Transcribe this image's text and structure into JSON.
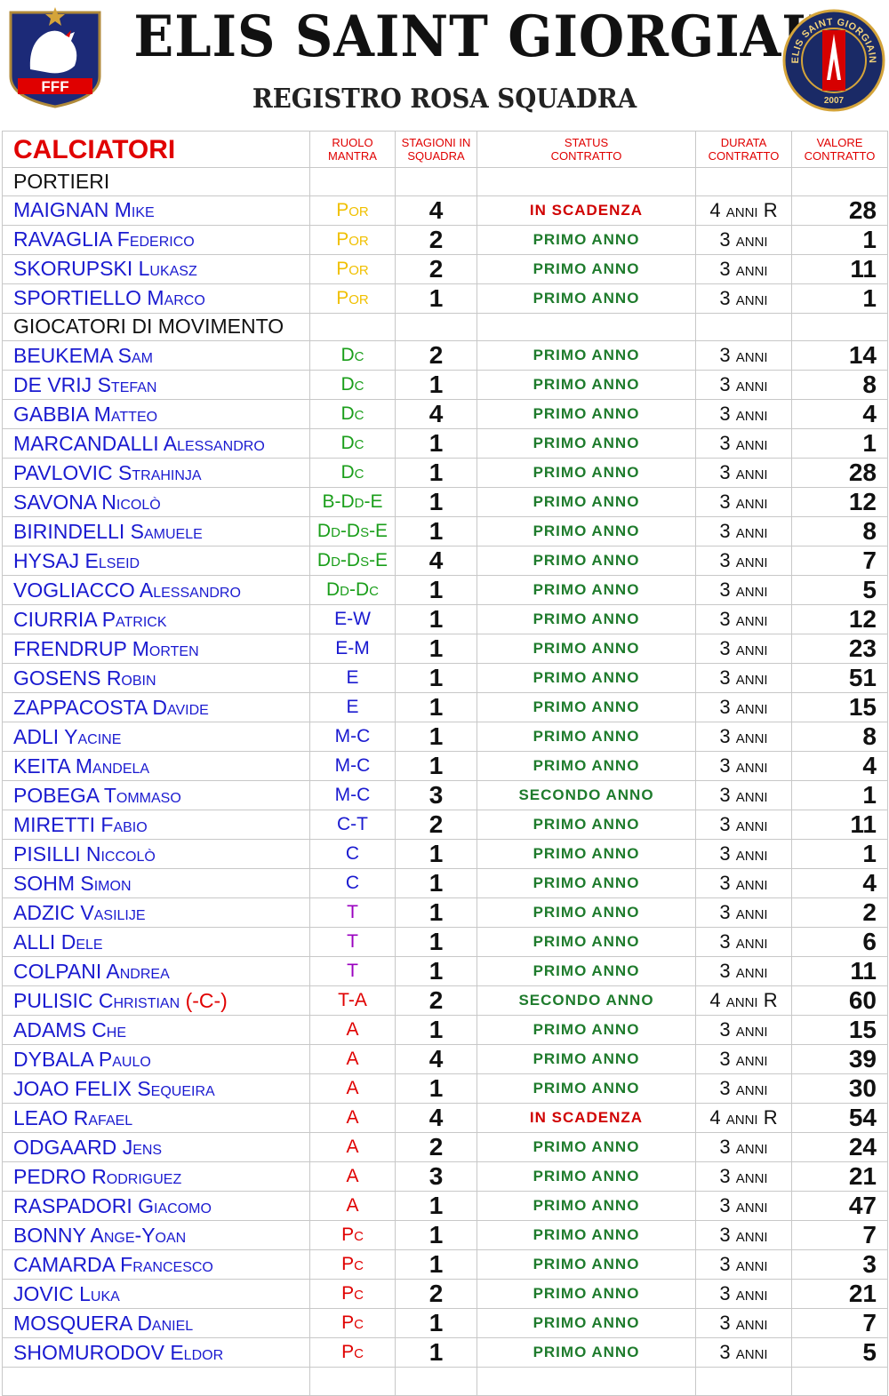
{
  "header": {
    "title": "ELIS SAINT GIORGIAIN",
    "subtitle": "REGISTRO ROSA SQUADRA",
    "left_logo": {
      "text": "FFF",
      "icon": "fff-rooster-crest-icon"
    },
    "right_logo": {
      "ring_text": "ELIS SAINT GIORGIAIN",
      "year": "2007",
      "icon": "psg-style-crest-icon"
    }
  },
  "columns": {
    "players": "CALCIATORI",
    "role": "RUOLO MANTRA",
    "seasons": "STAGIONI IN SQUADRA",
    "status": "STATUS CONTRATTO",
    "duration": "DURATA CONTRATTO",
    "value": "VALORE CONTRATTO"
  },
  "colors": {
    "header_red": "#e00000",
    "name_blue": "#1a1ad0",
    "status_green": "#1e7b2c",
    "status_red": "#d00000",
    "role_por": "#f0c000",
    "role_def": "#1a9e1a",
    "role_e": "#1a1ad0",
    "role_c": "#1a1ad0",
    "role_t": "#9a00c0",
    "role_a": "#e00000"
  },
  "sections": [
    {
      "label": "PORTIERI",
      "players": [
        {
          "surname": "MAIGNAN",
          "first": "Mike",
          "role": "Por",
          "role_color": "#f0c000",
          "seasons": "4",
          "status": "IN SCADENZA",
          "status_color": "#d00000",
          "duration": "4 anni R",
          "value": "28"
        },
        {
          "surname": "RAVAGLIA",
          "first": "Federico",
          "role": "Por",
          "role_color": "#f0c000",
          "seasons": "2",
          "status": "PRIMO ANNO",
          "status_color": "#1e7b2c",
          "duration": "3 anni",
          "value": "1"
        },
        {
          "surname": "SKORUPSKI",
          "first": "Lukasz",
          "role": "Por",
          "role_color": "#f0c000",
          "seasons": "2",
          "status": "PRIMO ANNO",
          "status_color": "#1e7b2c",
          "duration": "3 anni",
          "value": "11"
        },
        {
          "surname": "SPORTIELLO",
          "first": "Marco",
          "role": "Por",
          "role_color": "#f0c000",
          "seasons": "1",
          "status": "PRIMO ANNO",
          "status_color": "#1e7b2c",
          "duration": "3 anni",
          "value": "1"
        }
      ]
    },
    {
      "label": "GIOCATORI DI MOVIMENTO",
      "players": [
        {
          "surname": "BEUKEMA",
          "first": "Sam",
          "role": "Dc",
          "role_color": "#1a9e1a",
          "seasons": "2",
          "status": "PRIMO ANNO",
          "status_color": "#1e7b2c",
          "duration": "3 anni",
          "value": "14"
        },
        {
          "surname": "DE VRIJ",
          "first": "Stefan",
          "role": "Dc",
          "role_color": "#1a9e1a",
          "seasons": "1",
          "status": "PRIMO ANNO",
          "status_color": "#1e7b2c",
          "duration": "3 anni",
          "value": "8"
        },
        {
          "surname": "GABBIA",
          "first": "Matteo",
          "role": "Dc",
          "role_color": "#1a9e1a",
          "seasons": "4",
          "status": "PRIMO ANNO",
          "status_color": "#1e7b2c",
          "duration": "3 anni",
          "value": "4"
        },
        {
          "surname": "MARCANDALLI",
          "first": "Alessandro",
          "role": "Dc",
          "role_color": "#1a9e1a",
          "seasons": "1",
          "status": "PRIMO ANNO",
          "status_color": "#1e7b2c",
          "duration": "3 anni",
          "value": "1"
        },
        {
          "surname": "PAVLOVIC",
          "first": "Strahinja",
          "role": "Dc",
          "role_color": "#1a9e1a",
          "seasons": "1",
          "status": "PRIMO ANNO",
          "status_color": "#1e7b2c",
          "duration": "3 anni",
          "value": "28"
        },
        {
          "surname": "SAVONA",
          "first": "Nicolò",
          "role": "B-Dd-E",
          "role_color": "#1a9e1a",
          "seasons": "1",
          "status": "PRIMO ANNO",
          "status_color": "#1e7b2c",
          "duration": "3 anni",
          "value": "12"
        },
        {
          "surname": "BIRINDELLI",
          "first": "Samuele",
          "role": "Dd-Ds-E",
          "role_color": "#1a9e1a",
          "seasons": "1",
          "status": "PRIMO ANNO",
          "status_color": "#1e7b2c",
          "duration": "3 anni",
          "value": "8"
        },
        {
          "surname": "HYSAJ",
          "first": "Elseid",
          "role": "Dd-Ds-E",
          "role_color": "#1a9e1a",
          "seasons": "4",
          "status": "PRIMO ANNO",
          "status_color": "#1e7b2c",
          "duration": "3 anni",
          "value": "7"
        },
        {
          "surname": "VOGLIACCO",
          "first": "Alessandro",
          "role": "Dd-Dc",
          "role_color": "#1a9e1a",
          "seasons": "1",
          "status": "PRIMO ANNO",
          "status_color": "#1e7b2c",
          "duration": "3 anni",
          "value": "5"
        },
        {
          "surname": "CIURRIA",
          "first": "Patrick",
          "role": "E-W",
          "role_color": "#1a1ad0",
          "seasons": "1",
          "status": "PRIMO ANNO",
          "status_color": "#1e7b2c",
          "duration": "3 anni",
          "value": "12"
        },
        {
          "surname": "FRENDRUP",
          "first": "Morten",
          "role": "E-M",
          "role_color": "#1a1ad0",
          "seasons": "1",
          "status": "PRIMO ANNO",
          "status_color": "#1e7b2c",
          "duration": "3 anni",
          "value": "23"
        },
        {
          "surname": "GOSENS",
          "first": "Robin",
          "role": "E",
          "role_color": "#1a1ad0",
          "seasons": "1",
          "status": "PRIMO ANNO",
          "status_color": "#1e7b2c",
          "duration": "3 anni",
          "value": "51"
        },
        {
          "surname": "ZAPPACOSTA",
          "first": "Davide",
          "role": "E",
          "role_color": "#1a1ad0",
          "seasons": "1",
          "status": "PRIMO ANNO",
          "status_color": "#1e7b2c",
          "duration": "3 anni",
          "value": "15"
        },
        {
          "surname": "ADLI",
          "first": "Yacine",
          "role": "M-C",
          "role_color": "#1a1ad0",
          "seasons": "1",
          "status": "PRIMO ANNO",
          "status_color": "#1e7b2c",
          "duration": "3 anni",
          "value": "8"
        },
        {
          "surname": "KEITA",
          "first": "Mandela",
          "role": "M-C",
          "role_color": "#1a1ad0",
          "seasons": "1",
          "status": "PRIMO ANNO",
          "status_color": "#1e7b2c",
          "duration": "3 anni",
          "value": "4"
        },
        {
          "surname": "POBEGA",
          "first": "Tommaso",
          "role": "M-C",
          "role_color": "#1a1ad0",
          "seasons": "3",
          "status": "SECONDO ANNO",
          "status_color": "#1e7b2c",
          "duration": "3 anni",
          "value": "1"
        },
        {
          "surname": "MIRETTI",
          "first": "Fabio",
          "role": "C-T",
          "role_color": "#1a1ad0",
          "seasons": "2",
          "status": "PRIMO ANNO",
          "status_color": "#1e7b2c",
          "duration": "3 anni",
          "value": "11"
        },
        {
          "surname": "PISILLI",
          "first": "Niccolò",
          "role": "C",
          "role_color": "#1a1ad0",
          "seasons": "1",
          "status": "PRIMO ANNO",
          "status_color": "#1e7b2c",
          "duration": "3 anni",
          "value": "1"
        },
        {
          "surname": "SOHM",
          "first": "Simon",
          "role": "C",
          "role_color": "#1a1ad0",
          "seasons": "1",
          "status": "PRIMO ANNO",
          "status_color": "#1e7b2c",
          "duration": "3 anni",
          "value": "4"
        },
        {
          "surname": "ADZIC",
          "first": "Vasilije",
          "role": "T",
          "role_color": "#9a00c0",
          "seasons": "1",
          "status": "PRIMO ANNO",
          "status_color": "#1e7b2c",
          "duration": "3 anni",
          "value": "2"
        },
        {
          "surname": "ALLI",
          "first": "Dele",
          "role": "T",
          "role_color": "#9a00c0",
          "seasons": "1",
          "status": "PRIMO ANNO",
          "status_color": "#1e7b2c",
          "duration": "3 anni",
          "value": "6"
        },
        {
          "surname": "COLPANI",
          "first": "Andrea",
          "role": "T",
          "role_color": "#9a00c0",
          "seasons": "1",
          "status": "PRIMO ANNO",
          "status_color": "#1e7b2c",
          "duration": "3 anni",
          "value": "11"
        },
        {
          "surname": "PULISIC",
          "first": "Christian",
          "captain": "(-C-)",
          "role": "T-A",
          "role_color": "#e00000",
          "seasons": "2",
          "status": "SECONDO ANNO",
          "status_color": "#1e7b2c",
          "duration": "4 anni R",
          "value": "60"
        },
        {
          "surname": "ADAMS",
          "first": "Che",
          "role": "A",
          "role_color": "#e00000",
          "seasons": "1",
          "status": "PRIMO ANNO",
          "status_color": "#1e7b2c",
          "duration": "3 anni",
          "value": "15"
        },
        {
          "surname": "DYBALA",
          "first": "Paulo",
          "role": "A",
          "role_color": "#e00000",
          "seasons": "4",
          "status": "PRIMO ANNO",
          "status_color": "#1e7b2c",
          "duration": "3 anni",
          "value": "39"
        },
        {
          "surname": "JOAO FELIX",
          "first": "Sequeira",
          "role": "A",
          "role_color": "#e00000",
          "seasons": "1",
          "status": "PRIMO ANNO",
          "status_color": "#1e7b2c",
          "duration": "3 anni",
          "value": "30"
        },
        {
          "surname": "LEAO",
          "first": "Rafael",
          "role": "A",
          "role_color": "#e00000",
          "seasons": "4",
          "status": "IN SCADENZA",
          "status_color": "#d00000",
          "duration": "4 anni R",
          "value": "54"
        },
        {
          "surname": "ODGAARD",
          "first": "Jens",
          "role": "A",
          "role_color": "#e00000",
          "seasons": "2",
          "status": "PRIMO ANNO",
          "status_color": "#1e7b2c",
          "duration": "3 anni",
          "value": "24"
        },
        {
          "surname": "PEDRO",
          "first": "Rodriguez",
          "role": "A",
          "role_color": "#e00000",
          "seasons": "3",
          "status": "PRIMO ANNO",
          "status_color": "#1e7b2c",
          "duration": "3 anni",
          "value": "21"
        },
        {
          "surname": "RASPADORI",
          "first": "Giacomo",
          "role": "A",
          "role_color": "#e00000",
          "seasons": "1",
          "status": "PRIMO ANNO",
          "status_color": "#1e7b2c",
          "duration": "3 anni",
          "value": "47"
        },
        {
          "surname": "BONNY",
          "first": "Ange-Yoan",
          "role": "Pc",
          "role_color": "#e00000",
          "seasons": "1",
          "status": "PRIMO ANNO",
          "status_color": "#1e7b2c",
          "duration": "3 anni",
          "value": "7"
        },
        {
          "surname": "CAMARDA",
          "first": "Francesco",
          "role": "Pc",
          "role_color": "#e00000",
          "seasons": "1",
          "status": "PRIMO ANNO",
          "status_color": "#1e7b2c",
          "duration": "3 anni",
          "value": "3"
        },
        {
          "surname": "JOVIC",
          "first": "Luka",
          "role": "Pc",
          "role_color": "#e00000",
          "seasons": "2",
          "status": "PRIMO ANNO",
          "status_color": "#1e7b2c",
          "duration": "3 anni",
          "value": "21"
        },
        {
          "surname": "MOSQUERA",
          "first": "Daniel",
          "role": "Pc",
          "role_color": "#e00000",
          "seasons": "1",
          "status": "PRIMO ANNO",
          "status_color": "#1e7b2c",
          "duration": "3 anni",
          "value": "7"
        },
        {
          "surname": "SHOMURODOV",
          "first": "Eldor",
          "role": "Pc",
          "role_color": "#e00000",
          "seasons": "1",
          "status": "PRIMO ANNO",
          "status_color": "#1e7b2c",
          "duration": "3 anni",
          "value": "5"
        }
      ]
    }
  ]
}
